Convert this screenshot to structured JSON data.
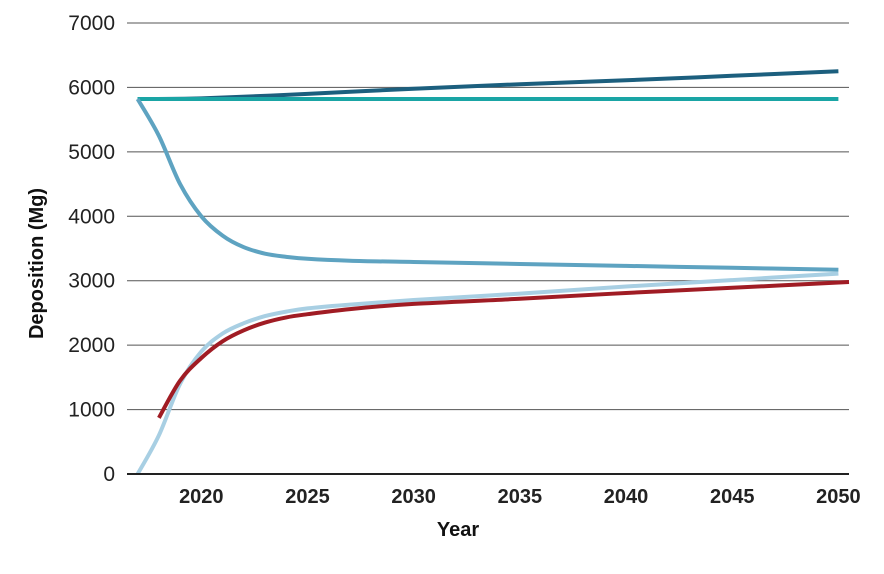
{
  "chart_data": {
    "type": "line",
    "title": "",
    "xlabel": "Year",
    "ylabel": "Deposition (Mg)",
    "xlim": [
      2016.5,
      2050.5
    ],
    "ylim": [
      0,
      7000
    ],
    "x_ticks": [
      2020,
      2025,
      2030,
      2035,
      2040,
      2045,
      2050
    ],
    "y_ticks": [
      0,
      1000,
      2000,
      3000,
      4000,
      5000,
      6000,
      7000
    ],
    "grid": "horizontal",
    "legend": "none",
    "series": [
      {
        "color": "#1c5f7e",
        "x": [
          2017,
          2020,
          2025,
          2030,
          2035,
          2040,
          2045,
          2050
        ],
        "y": [
          5820,
          5830,
          5900,
          5980,
          6050,
          6110,
          6180,
          6250
        ]
      },
      {
        "color": "#1aa5a5",
        "x": [
          2017,
          2050
        ],
        "y": [
          5820,
          5820
        ]
      },
      {
        "color": "#5ea3c1",
        "x": [
          2017,
          2018,
          2019,
          2020,
          2021,
          2022,
          2023,
          2024,
          2025,
          2027,
          2030,
          2035,
          2040,
          2045,
          2050
        ],
        "y": [
          5820,
          5250,
          4500,
          4000,
          3700,
          3520,
          3420,
          3370,
          3340,
          3310,
          3290,
          3260,
          3230,
          3200,
          3170
        ]
      },
      {
        "color": "#a8cfe3",
        "x": [
          2017,
          2018,
          2019,
          2020,
          2021,
          2022,
          2023,
          2024,
          2025,
          2027,
          2030,
          2035,
          2040,
          2045,
          2050
        ],
        "y": [
          0,
          600,
          1400,
          1900,
          2180,
          2340,
          2450,
          2520,
          2570,
          2630,
          2700,
          2800,
          2910,
          3010,
          3110
        ]
      },
      {
        "color": "#a01c24",
        "x": [
          2018,
          2019,
          2020,
          2021,
          2022,
          2023,
          2024,
          2025,
          2027,
          2030,
          2035,
          2040,
          2045,
          2050.5
        ],
        "y": [
          870,
          1450,
          1800,
          2060,
          2230,
          2350,
          2430,
          2480,
          2560,
          2640,
          2720,
          2810,
          2890,
          2980
        ]
      }
    ]
  }
}
